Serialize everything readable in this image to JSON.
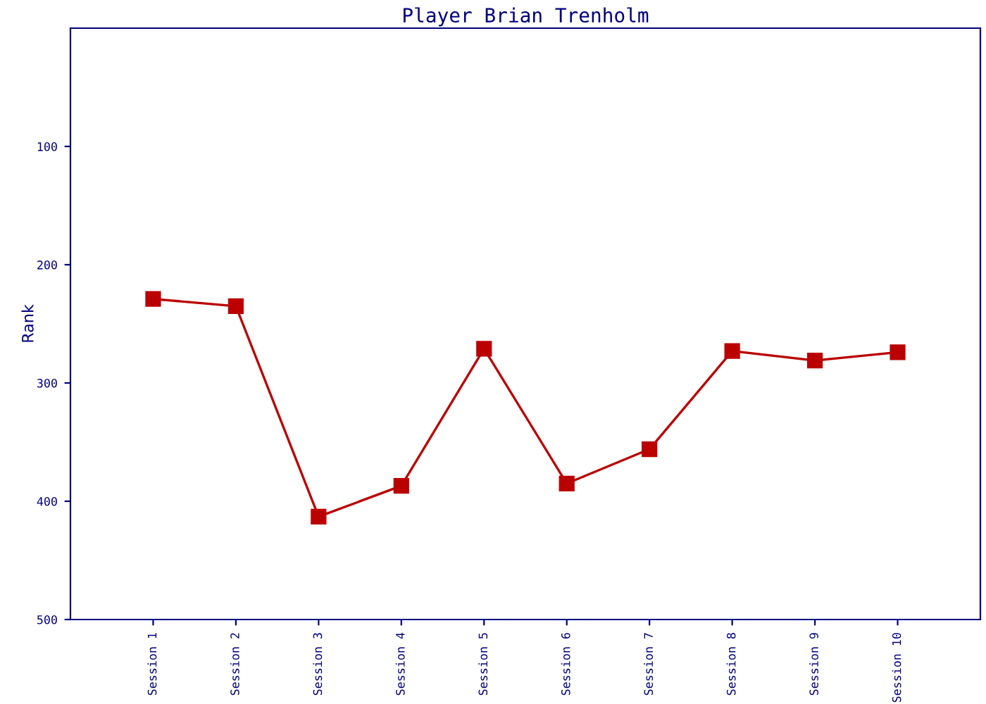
{
  "chart_data": {
    "type": "line",
    "title": "Player Brian Trenholm",
    "ylabel": "Rank",
    "categories": [
      "Session 1",
      "Session 2",
      "Session 3",
      "Session 4",
      "Session 5",
      "Session 6",
      "Session 7",
      "Session 8",
      "Session 9",
      "Session 10"
    ],
    "series": [
      {
        "color": "#bb0000",
        "values": [
          229,
          235,
          413,
          387,
          271,
          385,
          356,
          273,
          281,
          274
        ]
      }
    ],
    "ylim": [
      500,
      0
    ],
    "yticks": [
      100,
      200,
      300,
      400,
      500
    ],
    "marker": "square",
    "line_style": "solid",
    "grid": false,
    "legend": false
  }
}
